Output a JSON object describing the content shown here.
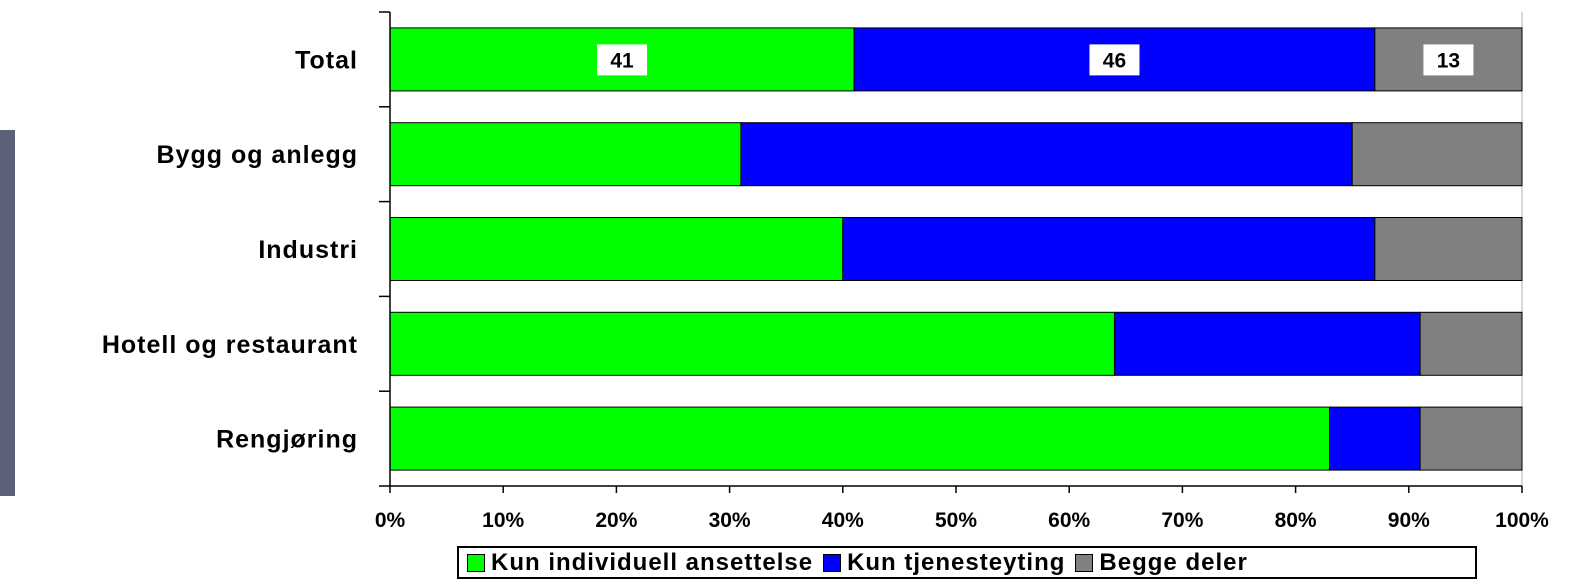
{
  "chart_data": {
    "type": "bar",
    "orientation": "horizontal",
    "stacked": "percent",
    "categories": [
      "Total",
      "Bygg og anlegg",
      "Industri",
      "Hotell og restaurant",
      "Rengjøring"
    ],
    "series": [
      {
        "name": "Kun individuell ansettelse",
        "color": "#00ff00",
        "values": [
          41,
          31,
          40,
          64,
          83
        ]
      },
      {
        "name": "Kun tjenesteyting",
        "color": "#0000ff",
        "values": [
          46,
          54,
          47,
          27,
          8
        ]
      },
      {
        "name": "Begge deler",
        "color": "#808080",
        "values": [
          13,
          15,
          13,
          9,
          9
        ]
      }
    ],
    "data_labels": [
      {
        "category": "Total",
        "series": "Kun individuell ansettelse",
        "text": "41"
      },
      {
        "category": "Total",
        "series": "Kun tjenesteyting",
        "text": "46"
      },
      {
        "category": "Total",
        "series": "Begge deler",
        "text": "13"
      }
    ],
    "xlim": [
      0,
      100
    ],
    "x_ticks": [
      "0%",
      "10%",
      "20%",
      "30%",
      "40%",
      "50%",
      "60%",
      "70%",
      "80%",
      "90%",
      "100%"
    ],
    "legend": "bottom",
    "grid": false
  }
}
